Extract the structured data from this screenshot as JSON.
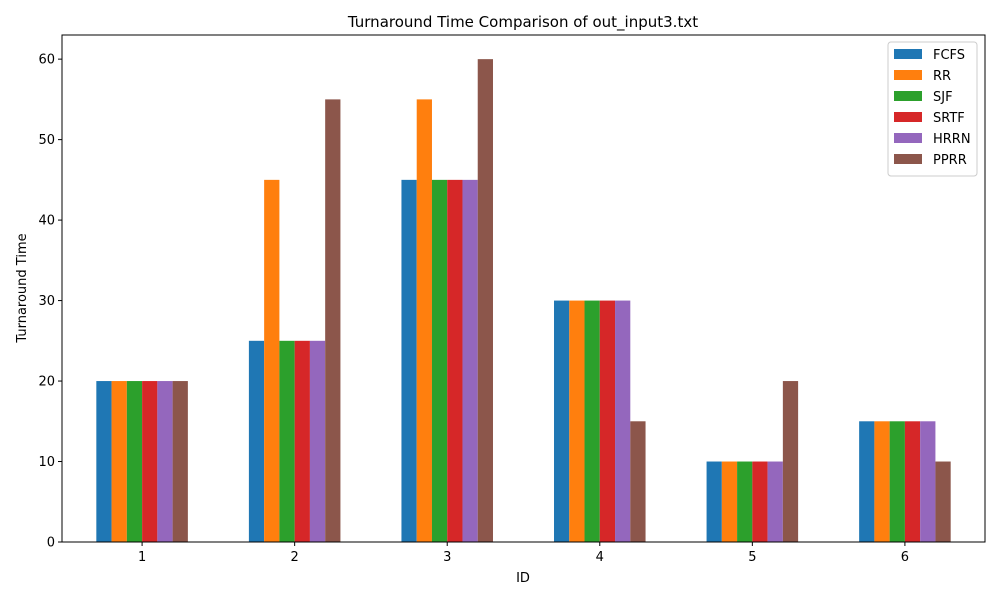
{
  "chart_data": {
    "type": "bar",
    "title": "Turnaround Time Comparison of out_input3.txt",
    "xlabel": "ID",
    "ylabel": "Turnaround Time",
    "categories": [
      "1",
      "2",
      "3",
      "4",
      "5",
      "6"
    ],
    "ylim": [
      0,
      63
    ],
    "yticks": [
      0,
      10,
      20,
      30,
      40,
      50,
      60
    ],
    "grid": false,
    "legend_position": "top-right",
    "series": [
      {
        "name": "FCFS",
        "color": "#1f77b4",
        "values": [
          20,
          25,
          45,
          30,
          10,
          15
        ]
      },
      {
        "name": "RR",
        "color": "#ff7f0e",
        "values": [
          20,
          45,
          55,
          30,
          10,
          15
        ]
      },
      {
        "name": "SJF",
        "color": "#2ca02c",
        "values": [
          20,
          25,
          45,
          30,
          10,
          15
        ]
      },
      {
        "name": "SRTF",
        "color": "#d62728",
        "values": [
          20,
          25,
          45,
          30,
          10,
          15
        ]
      },
      {
        "name": "HRRN",
        "color": "#9467bd",
        "values": [
          20,
          25,
          45,
          30,
          10,
          15
        ]
      },
      {
        "name": "PPRR",
        "color": "#8c564b",
        "values": [
          20,
          55,
          60,
          15,
          20,
          10
        ]
      }
    ]
  }
}
